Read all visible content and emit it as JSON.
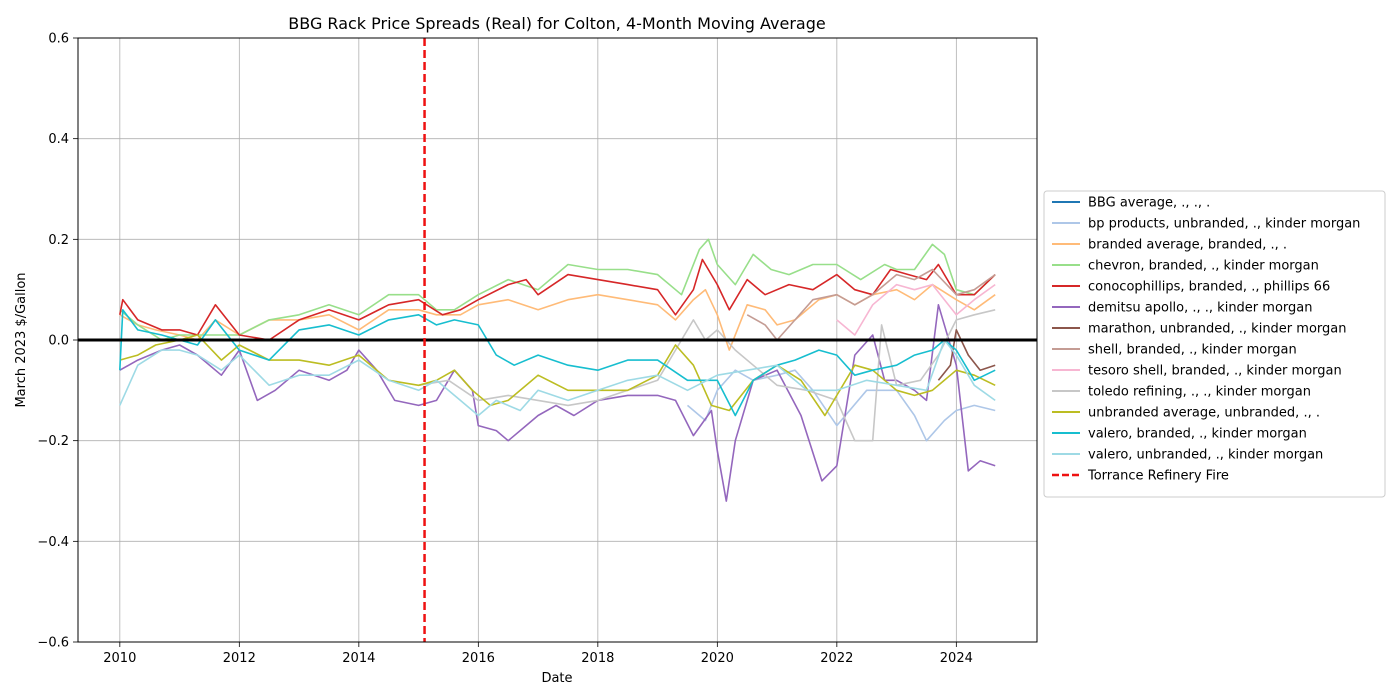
{
  "chart_data": {
    "type": "line",
    "title": "BBG Rack Price Spreads (Real) for Colton, 4-Month Moving Average",
    "xlabel": "Date",
    "ylabel": "March 2023 $/Gallon",
    "xlim": [
      2009.3,
      2025.35
    ],
    "ylim": [
      -0.6,
      0.6
    ],
    "x_ticks": [
      2010,
      2012,
      2014,
      2016,
      2018,
      2020,
      2022,
      2024
    ],
    "y_ticks": [
      -0.6,
      -0.4,
      -0.2,
      0.0,
      0.2,
      0.4,
      0.6
    ],
    "y_tick_labels": [
      "−0.6",
      "−0.4",
      "−0.2",
      "0.0",
      "0.2",
      "0.4",
      "0.6"
    ],
    "grid": true,
    "legend_position": "right-outside",
    "zero_line": {
      "y": 0.0,
      "color": "#000000"
    },
    "event_line": {
      "name": "Torrance Refinery Fire",
      "x": 2015.1,
      "color": "#ee1111",
      "style": "dashed"
    },
    "series": [
      {
        "name": "BBG average, ., ., .",
        "color": "#1f77b4",
        "x": [],
        "y": []
      },
      {
        "name": "bp products, unbranded, ., kinder morgan",
        "color": "#aec7e8",
        "x": [
          2019.5,
          2019.8,
          2020.0,
          2020.3,
          2020.6,
          2021.0,
          2021.3,
          2021.6,
          2022.0,
          2022.5,
          2023.0,
          2023.3,
          2023.5,
          2023.8,
          2024.0,
          2024.3,
          2024.65
        ],
        "y": [
          -0.13,
          -0.16,
          -0.1,
          -0.06,
          -0.08,
          -0.07,
          -0.06,
          -0.1,
          -0.17,
          -0.1,
          -0.1,
          -0.15,
          -0.2,
          -0.16,
          -0.14,
          -0.13,
          -0.14
        ]
      },
      {
        "name": "branded average, branded, ., .",
        "color": "#ffbb78",
        "x": [
          2010.0,
          2010.3,
          2010.6,
          2011.0,
          2011.3,
          2011.6,
          2012.0,
          2012.5,
          2013.0,
          2013.5,
          2014.0,
          2014.5,
          2015.0,
          2015.3,
          2015.7,
          2016.0,
          2016.5,
          2017.0,
          2017.5,
          2018.0,
          2018.5,
          2019.0,
          2019.3,
          2019.6,
          2019.8,
          2020.0,
          2020.2,
          2020.5,
          2020.8,
          2021.0,
          2021.3,
          2021.7,
          2022.0,
          2022.3,
          2022.6,
          2023.0,
          2023.3,
          2023.6,
          2024.0,
          2024.3,
          2024.65
        ],
        "y": [
          0.05,
          0.03,
          0.02,
          0.01,
          0.0,
          0.04,
          0.01,
          0.04,
          0.04,
          0.05,
          0.02,
          0.06,
          0.06,
          0.05,
          0.05,
          0.07,
          0.08,
          0.06,
          0.08,
          0.09,
          0.08,
          0.07,
          0.04,
          0.08,
          0.1,
          0.05,
          -0.02,
          0.07,
          0.06,
          0.03,
          0.04,
          0.08,
          0.09,
          0.07,
          0.09,
          0.1,
          0.08,
          0.11,
          0.08,
          0.06,
          0.09
        ]
      },
      {
        "name": "chevron, branded, ., kinder morgan",
        "color": "#98df8a",
        "x": [
          2010.0,
          2010.3,
          2010.7,
          2011.0,
          2011.5,
          2012.0,
          2012.5,
          2013.0,
          2013.5,
          2014.0,
          2014.5,
          2015.0,
          2015.3,
          2015.6,
          2016.0,
          2016.5,
          2017.0,
          2017.5,
          2018.0,
          2018.5,
          2019.0,
          2019.4,
          2019.7,
          2019.85,
          2020.0,
          2020.3,
          2020.6,
          2020.9,
          2021.2,
          2021.6,
          2022.0,
          2022.4,
          2022.8,
          2023.0,
          2023.3,
          2023.6,
          2023.8,
          2024.0,
          2024.3,
          2024.65
        ],
        "y": [
          0.06,
          0.03,
          0.0,
          0.01,
          0.01,
          0.01,
          0.04,
          0.05,
          0.07,
          0.05,
          0.09,
          0.09,
          0.06,
          0.06,
          0.09,
          0.12,
          0.1,
          0.15,
          0.14,
          0.14,
          0.13,
          0.09,
          0.18,
          0.2,
          0.15,
          0.11,
          0.17,
          0.14,
          0.13,
          0.15,
          0.15,
          0.12,
          0.15,
          0.14,
          0.14,
          0.19,
          0.17,
          0.1,
          0.09,
          0.13
        ]
      },
      {
        "name": "conocophillips, branded, ., phillips 66",
        "color": "#d62728",
        "x": [
          2010.0,
          2010.05,
          2010.3,
          2010.7,
          2011.0,
          2011.3,
          2011.6,
          2012.0,
          2012.5,
          2013.0,
          2013.5,
          2014.0,
          2014.5,
          2015.0,
          2015.4,
          2015.7,
          2016.0,
          2016.5,
          2016.8,
          2017.0,
          2017.5,
          2018.0,
          2018.5,
          2019.0,
          2019.3,
          2019.6,
          2019.75,
          2020.0,
          2020.2,
          2020.5,
          2020.8,
          2021.2,
          2021.6,
          2022.0,
          2022.3,
          2022.6,
          2022.9,
          2023.2,
          2023.5,
          2023.7,
          2024.0,
          2024.3,
          2024.65
        ],
        "y": [
          0.05,
          0.08,
          0.04,
          0.02,
          0.02,
          0.01,
          0.07,
          0.01,
          0.0,
          0.04,
          0.06,
          0.04,
          0.07,
          0.08,
          0.05,
          0.06,
          0.08,
          0.11,
          0.12,
          0.09,
          0.13,
          0.12,
          0.11,
          0.1,
          0.05,
          0.1,
          0.16,
          0.11,
          0.06,
          0.12,
          0.09,
          0.11,
          0.1,
          0.13,
          0.1,
          0.09,
          0.14,
          0.13,
          0.12,
          0.15,
          0.09,
          0.09,
          0.13
        ]
      },
      {
        "name": "demitsu apollo, ., ., kinder morgan",
        "color": "#9467bd",
        "x": [
          2010.0,
          2010.3,
          2010.7,
          2011.0,
          2011.3,
          2011.7,
          2012.0,
          2012.3,
          2012.6,
          2013.0,
          2013.5,
          2013.8,
          2014.0,
          2014.3,
          2014.6,
          2015.0,
          2015.3,
          2015.6,
          2015.9,
          2016.0,
          2016.3,
          2016.5,
          2016.8,
          2017.0,
          2017.3,
          2017.6,
          2018.0,
          2018.5,
          2019.0,
          2019.3,
          2019.6,
          2019.9,
          2020.0,
          2020.15,
          2020.3,
          2020.6,
          2021.0,
          2021.4,
          2021.75,
          2022.0,
          2022.3,
          2022.6,
          2022.8,
          2023.0,
          2023.3,
          2023.5,
          2023.7,
          2024.0,
          2024.2,
          2024.4,
          2024.65
        ],
        "y": [
          -0.06,
          -0.04,
          -0.02,
          -0.01,
          -0.03,
          -0.07,
          -0.02,
          -0.12,
          -0.1,
          -0.06,
          -0.08,
          -0.06,
          -0.02,
          -0.06,
          -0.12,
          -0.13,
          -0.12,
          -0.06,
          -0.1,
          -0.17,
          -0.18,
          -0.2,
          -0.17,
          -0.15,
          -0.13,
          -0.15,
          -0.12,
          -0.11,
          -0.11,
          -0.12,
          -0.19,
          -0.14,
          -0.22,
          -0.32,
          -0.2,
          -0.08,
          -0.06,
          -0.15,
          -0.28,
          -0.25,
          -0.03,
          0.01,
          -0.08,
          -0.08,
          -0.1,
          -0.12,
          0.07,
          -0.05,
          -0.26,
          -0.24,
          -0.25
        ]
      },
      {
        "name": "marathon, unbranded, ., kinder morgan",
        "color": "#8c564b",
        "x": [
          2023.7,
          2023.9,
          2024.0,
          2024.2,
          2024.4,
          2024.65
        ],
        "y": [
          -0.08,
          -0.05,
          0.02,
          -0.03,
          -0.06,
          -0.05
        ]
      },
      {
        "name": "shell, branded, ., kinder morgan",
        "color": "#c49c94",
        "x": [
          2020.5,
          2020.8,
          2021.0,
          2021.3,
          2021.6,
          2022.0,
          2022.3,
          2022.6,
          2023.0,
          2023.3,
          2023.6,
          2024.0,
          2024.3,
          2024.65
        ],
        "y": [
          0.05,
          0.03,
          0.0,
          0.04,
          0.08,
          0.09,
          0.07,
          0.09,
          0.13,
          0.12,
          0.14,
          0.09,
          0.1,
          0.13
        ]
      },
      {
        "name": "tesoro shell, branded, ., kinder morgan",
        "color": "#f7b6d2",
        "x": [
          2022.0,
          2022.3,
          2022.6,
          2023.0,
          2023.3,
          2023.6,
          2024.0,
          2024.3,
          2024.65
        ],
        "y": [
          0.04,
          0.01,
          0.07,
          0.11,
          0.1,
          0.11,
          0.05,
          0.08,
          0.11
        ]
      },
      {
        "name": "toledo refining, ., ., kinder morgan",
        "color": "#c7c7c7",
        "x": [
          2015.0,
          2015.5,
          2016.0,
          2016.5,
          2017.0,
          2017.5,
          2018.0,
          2018.5,
          2019.0,
          2019.3,
          2019.6,
          2019.8,
          2020.0,
          2020.3,
          2020.6,
          2021.0,
          2021.5,
          2022.0,
          2022.3,
          2022.6,
          2022.75,
          2023.0,
          2023.4,
          2023.7,
          2024.0,
          2024.3,
          2024.65
        ],
        "y": [
          -0.09,
          -0.08,
          -0.12,
          -0.11,
          -0.12,
          -0.13,
          -0.12,
          -0.1,
          -0.08,
          -0.02,
          0.04,
          0.0,
          0.02,
          -0.02,
          -0.05,
          -0.09,
          -0.1,
          -0.12,
          -0.2,
          -0.2,
          0.03,
          -0.09,
          -0.08,
          -0.03,
          0.04,
          0.05,
          0.06
        ]
      },
      {
        "name": "unbranded average, unbranded, ., .",
        "color": "#bcbd22",
        "x": [
          2010.0,
          2010.3,
          2010.6,
          2011.0,
          2011.3,
          2011.7,
          2012.0,
          2012.5,
          2013.0,
          2013.5,
          2014.0,
          2014.5,
          2015.0,
          2015.3,
          2015.6,
          2015.9,
          2016.2,
          2016.5,
          2017.0,
          2017.5,
          2018.0,
          2018.5,
          2019.0,
          2019.3,
          2019.6,
          2019.9,
          2020.2,
          2020.6,
          2021.0,
          2021.4,
          2021.8,
          2022.0,
          2022.3,
          2022.6,
          2023.0,
          2023.3,
          2023.6,
          2024.0,
          2024.3,
          2024.65
        ],
        "y": [
          -0.04,
          -0.03,
          -0.01,
          0.0,
          0.01,
          -0.04,
          -0.01,
          -0.04,
          -0.04,
          -0.05,
          -0.03,
          -0.08,
          -0.09,
          -0.08,
          -0.06,
          -0.1,
          -0.13,
          -0.12,
          -0.07,
          -0.1,
          -0.1,
          -0.1,
          -0.07,
          -0.01,
          -0.05,
          -0.13,
          -0.14,
          -0.08,
          -0.05,
          -0.08,
          -0.15,
          -0.11,
          -0.05,
          -0.06,
          -0.1,
          -0.11,
          -0.1,
          -0.06,
          -0.07,
          -0.09
        ]
      },
      {
        "name": "valero, branded, ., kinder morgan",
        "color": "#17becf",
        "x": [
          2010.0,
          2010.05,
          2010.3,
          2010.7,
          2011.0,
          2011.3,
          2011.6,
          2012.0,
          2012.5,
          2013.0,
          2013.5,
          2014.0,
          2014.5,
          2015.0,
          2015.3,
          2015.6,
          2016.0,
          2016.3,
          2016.6,
          2017.0,
          2017.5,
          2018.0,
          2018.5,
          2019.0,
          2019.5,
          2020.0,
          2020.3,
          2020.6,
          2021.0,
          2021.3,
          2021.7,
          2022.0,
          2022.3,
          2022.6,
          2023.0,
          2023.3,
          2023.6,
          2023.8,
          2024.0,
          2024.3,
          2024.65
        ],
        "y": [
          -0.06,
          0.06,
          0.02,
          0.01,
          0.0,
          -0.01,
          0.04,
          -0.02,
          -0.04,
          0.02,
          0.03,
          0.01,
          0.04,
          0.05,
          0.03,
          0.04,
          0.03,
          -0.03,
          -0.05,
          -0.03,
          -0.05,
          -0.06,
          -0.04,
          -0.04,
          -0.08,
          -0.08,
          -0.15,
          -0.08,
          -0.05,
          -0.04,
          -0.02,
          -0.03,
          -0.07,
          -0.06,
          -0.05,
          -0.03,
          -0.02,
          0.0,
          -0.02,
          -0.08,
          -0.06
        ]
      },
      {
        "name": "valero, unbranded, ., kinder morgan",
        "color": "#9edae5",
        "x": [
          2010.0,
          2010.3,
          2010.7,
          2011.0,
          2011.3,
          2011.7,
          2012.0,
          2012.5,
          2013.0,
          2013.5,
          2014.0,
          2014.5,
          2015.0,
          2015.3,
          2015.7,
          2016.0,
          2016.3,
          2016.7,
          2017.0,
          2017.5,
          2018.0,
          2018.5,
          2019.0,
          2019.5,
          2020.0,
          2020.5,
          2021.0,
          2021.5,
          2022.0,
          2022.5,
          2023.0,
          2023.5,
          2023.8,
          2024.0,
          2024.3,
          2024.65
        ],
        "y": [
          -0.13,
          -0.05,
          -0.02,
          -0.02,
          -0.03,
          -0.06,
          -0.03,
          -0.09,
          -0.07,
          -0.07,
          -0.04,
          -0.08,
          -0.1,
          -0.08,
          -0.12,
          -0.15,
          -0.12,
          -0.14,
          -0.1,
          -0.12,
          -0.1,
          -0.08,
          -0.07,
          -0.1,
          -0.07,
          -0.06,
          -0.05,
          -0.1,
          -0.1,
          -0.08,
          -0.09,
          -0.1,
          0.0,
          -0.03,
          -0.09,
          -0.12
        ]
      }
    ]
  }
}
